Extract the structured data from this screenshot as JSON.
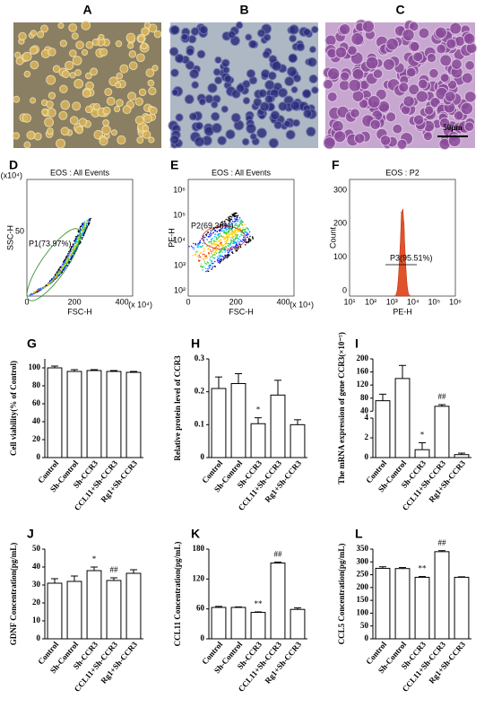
{
  "panels": {
    "images": [
      {
        "letter": "A"
      },
      {
        "letter": "B"
      },
      {
        "letter": "C",
        "scale": "50μm"
      }
    ]
  },
  "flow": [
    {
      "letter": "D",
      "title": "EOS : All Events",
      "ylabel": "SSC-H",
      "xlabel": "FSC-H",
      "yunit": "(x10⁴)",
      "xunit": "(x 10⁴)",
      "yticks": [
        "50"
      ],
      "xticks": [
        "0",
        "200",
        "400"
      ],
      "gate": "P1(73.97%)"
    },
    {
      "letter": "E",
      "title": "EOS : All Events",
      "ylabel": "PE-H",
      "xlabel": "FSC-H",
      "xunit": "(x 10⁴)",
      "yticks": [
        "10⁶",
        "10⁵",
        "10⁴",
        "10³",
        "10²"
      ],
      "xticks": [
        "0",
        "200",
        "400"
      ],
      "gate": "P2(69.36%)"
    },
    {
      "letter": "F",
      "title": "EOS : P2",
      "ylabel": "Count",
      "xlabel": "PE-H",
      "yticks": [
        "300",
        "200",
        "100",
        "0"
      ],
      "xticks": [
        "10¹",
        "10²",
        "10³",
        "10⁴",
        "10⁵",
        "10⁶"
      ],
      "gate": "P3(95.51%)"
    }
  ],
  "chart_data": [
    {
      "type": "bar",
      "letter": "G",
      "ylabel": "Cell viability(% of Control)",
      "categories": [
        "Control",
        "Sh-Control",
        "Sh-CCR3",
        "CCL11+Sh-CCR3",
        "Rg1+Sh-CCR3"
      ],
      "values": [
        100,
        96,
        97,
        96,
        95
      ],
      "errors": [
        2,
        2,
        1,
        1,
        1
      ],
      "ylim": [
        0,
        110
      ],
      "yticks": [
        0,
        20,
        40,
        60,
        80,
        100
      ],
      "annotations": []
    },
    {
      "type": "bar",
      "letter": "H",
      "ylabel": "Relative protein level of CCR3",
      "categories": [
        "Control",
        "Sh-Control",
        "Sh-CCR3",
        "CCL11+Sh-CCR3",
        "Rg1+Sh-CCR3"
      ],
      "values": [
        0.21,
        0.225,
        0.103,
        0.19,
        0.1
      ],
      "errors": [
        0.035,
        0.03,
        0.018,
        0.045,
        0.015
      ],
      "ylim": [
        0,
        0.3
      ],
      "yticks": [
        0,
        0.1,
        0.2,
        0.3
      ],
      "annotations": [
        {
          "text": "*",
          "index": 2
        }
      ]
    },
    {
      "type": "bar",
      "letter": "I",
      "ylabel": "The mRNA expression of gene CCR3(×10⁻⁵)",
      "categories": [
        "Control",
        "Sh-Control",
        "Sh-CCR3",
        "CCL11+Sh-CCR3",
        "Rg1+Sh-CCR3"
      ],
      "values": [
        72,
        140,
        0.8,
        55,
        0.3
      ],
      "errors": [
        20,
        40,
        0.7,
        5,
        0.15
      ],
      "ylim": [
        0,
        200
      ],
      "ybreak": [
        4,
        40
      ],
      "yticks": [
        0,
        2,
        4,
        40,
        80,
        120,
        160,
        200
      ],
      "annotations": [
        {
          "text": "*",
          "index": 2
        },
        {
          "text": "##",
          "index": 3
        }
      ]
    },
    {
      "type": "bar",
      "letter": "J",
      "ylabel": "GDNF Concentration(pg/mL)",
      "categories": [
        "Control",
        "Sh-Control",
        "Sh-CCR3",
        "CCL11+Sh-CCR3",
        "Rg1+Sh-CCR3"
      ],
      "values": [
        31,
        32,
        38,
        32.5,
        36.5
      ],
      "errors": [
        2.5,
        3,
        2,
        1.5,
        2
      ],
      "ylim": [
        0,
        50
      ],
      "yticks": [
        0,
        10,
        20,
        30,
        40,
        50
      ],
      "annotations": [
        {
          "text": "*",
          "index": 2
        },
        {
          "text": "##",
          "index": 3
        }
      ]
    },
    {
      "type": "bar",
      "letter": "K",
      "ylabel": "CCL11 Concentration(pg/mL)",
      "categories": [
        "Control",
        "Sh-Control",
        "Sh-CCR3",
        "CCL11+Sh-CCR3",
        "Rg1+Sh-CCR3"
      ],
      "values": [
        63,
        63,
        53,
        152,
        59
      ],
      "errors": [
        2,
        1,
        1,
        2,
        3
      ],
      "ylim": [
        0,
        180
      ],
      "yticks": [
        0,
        60,
        120,
        180
      ],
      "annotations": [
        {
          "text": "**",
          "index": 2
        },
        {
          "text": "##",
          "index": 3
        }
      ]
    },
    {
      "type": "bar",
      "letter": "L",
      "ylabel": "CCL5 Concentration(pg/mL)",
      "categories": [
        "Control",
        "Sh-Control",
        "Sh-CCR3",
        "CCL11+Sh-CCR3",
        "Rg1+Sh-CCR3"
      ],
      "values": [
        275,
        274,
        240,
        340,
        240
      ],
      "errors": [
        6,
        4,
        3,
        4,
        2
      ],
      "ylim": [
        0,
        350
      ],
      "yticks": [
        0,
        50,
        100,
        150,
        200,
        250,
        300,
        350
      ],
      "annotations": [
        {
          "text": "**",
          "index": 2
        },
        {
          "text": "##",
          "index": 3
        }
      ]
    }
  ]
}
